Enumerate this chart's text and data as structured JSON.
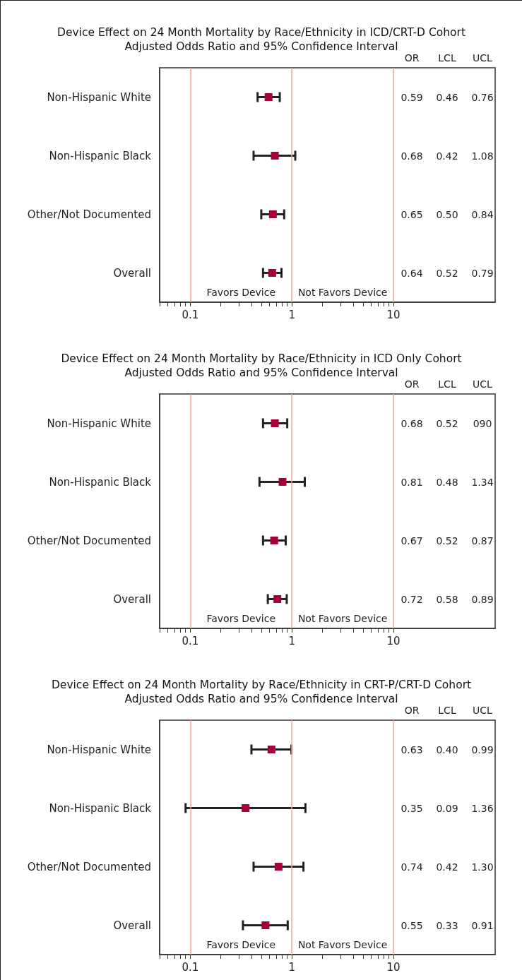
{
  "chart_data": [
    {
      "type": "scatter",
      "orientation": "horizontal",
      "title": "Device Effect on 24 Month Mortality by Race/Ethnicity in ICD/CRT-D Cohort",
      "subtitle": "Adjusted Odds Ratio and 95% Confidence Interval",
      "categories": [
        "Non-Hispanic White",
        "Non-Hispanic Black",
        "Other/Not Documented",
        "Overall"
      ],
      "series": [
        {
          "color": "#a6003a",
          "values": [
            0.59,
            0.68,
            0.65,
            0.64
          ],
          "errors": [
            [
              0.46,
              0.76
            ],
            [
              0.42,
              1.08
            ],
            [
              0.5,
              0.84
            ],
            [
              0.52,
              0.79
            ]
          ]
        }
      ],
      "marker": "square",
      "log": "x",
      "grid": false,
      "xlim": [
        0.05,
        100
      ],
      "xticks": [
        {
          "value": 0.05,
          "label": null
        },
        {
          "value": 0.06,
          "label": null
        },
        {
          "value": 0.07,
          "label": null
        },
        {
          "value": 0.08,
          "label": null
        },
        {
          "value": 0.09,
          "label": null
        },
        0.1,
        {
          "value": 0.2,
          "label": null
        },
        {
          "value": 0.3,
          "label": null
        },
        {
          "value": 0.4,
          "label": null
        },
        {
          "value": 0.5,
          "label": null
        },
        {
          "value": 0.6,
          "label": null
        },
        {
          "value": 0.7,
          "label": null
        },
        {
          "value": 0.8,
          "label": null
        },
        {
          "value": 0.9,
          "label": null
        },
        1,
        {
          "value": 2,
          "label": null
        },
        {
          "value": 3,
          "label": null
        },
        {
          "value": 4,
          "label": null
        },
        {
          "value": 5,
          "label": null
        },
        {
          "value": 6,
          "label": null
        },
        {
          "value": 7,
          "label": null
        },
        {
          "value": 8,
          "label": null
        },
        {
          "value": 9,
          "label": null
        },
        10
      ],
      "ref_lines": [
        {
          "axis": "x",
          "value": 0.1,
          "color": "#f4a590"
        },
        {
          "axis": "x",
          "value": 1,
          "color": "#f4a590"
        },
        {
          "axis": "x",
          "value": 10,
          "color": "#f4a590"
        }
      ],
      "annotations": [
        "Favors Device",
        "Not Favors Device",
        "OR",
        "LCL",
        "UCL",
        "0.59",
        "0.46",
        "0.76",
        "0.68",
        "0.42",
        "1.08",
        "0.65",
        "0.50",
        "0.84",
        "0.64",
        "0.52",
        "0.79"
      ]
    },
    {
      "type": "scatter",
      "orientation": "horizontal",
      "title": "Device Effect on 24 Month Mortality by Race/Ethnicity in ICD Only Cohort",
      "subtitle": "Adjusted Odds Ratio and 95% Confidence Interval",
      "categories": [
        "Non-Hispanic White",
        "Non-Hispanic Black",
        "Other/Not Documented",
        "Overall"
      ],
      "series": [
        {
          "color": "#a6003a",
          "values": [
            0.68,
            0.81,
            0.67,
            0.72
          ],
          "errors": [
            [
              0.52,
              0.9
            ],
            [
              0.48,
              1.34
            ],
            [
              0.52,
              0.87
            ],
            [
              0.58,
              0.89
            ]
          ]
        }
      ],
      "marker": "square",
      "log": "x",
      "grid": false,
      "xlim": [
        0.05,
        100
      ],
      "xticks": [
        {
          "value": 0.05,
          "label": null
        },
        {
          "value": 0.06,
          "label": null
        },
        {
          "value": 0.07,
          "label": null
        },
        {
          "value": 0.08,
          "label": null
        },
        {
          "value": 0.09,
          "label": null
        },
        0.1,
        {
          "value": 0.2,
          "label": null
        },
        {
          "value": 0.3,
          "label": null
        },
        {
          "value": 0.4,
          "label": null
        },
        {
          "value": 0.5,
          "label": null
        },
        {
          "value": 0.6,
          "label": null
        },
        {
          "value": 0.7,
          "label": null
        },
        {
          "value": 0.8,
          "label": null
        },
        {
          "value": 0.9,
          "label": null
        },
        1,
        {
          "value": 2,
          "label": null
        },
        {
          "value": 3,
          "label": null
        },
        {
          "value": 4,
          "label": null
        },
        {
          "value": 5,
          "label": null
        },
        {
          "value": 6,
          "label": null
        },
        {
          "value": 7,
          "label": null
        },
        {
          "value": 8,
          "label": null
        },
        {
          "value": 9,
          "label": null
        },
        10
      ],
      "ref_lines": [
        {
          "axis": "x",
          "value": 0.1,
          "color": "#f4a590"
        },
        {
          "axis": "x",
          "value": 1,
          "color": "#f4a590"
        },
        {
          "axis": "x",
          "value": 10,
          "color": "#f4a590"
        }
      ],
      "annotations": [
        "Favors Device",
        "Not Favors Device",
        "OR",
        "LCL",
        "UCL",
        "0.68",
        "0.52",
        "090",
        "0.81",
        "0.48",
        "1.34",
        "0.67",
        "0.52",
        "0.87",
        "0.72",
        "0.58",
        "0.89"
      ]
    },
    {
      "type": "scatter",
      "orientation": "horizontal",
      "title": "Device Effect on 24 Month Mortality by Race/Ethnicity in CRT-P/CRT-D Cohort",
      "subtitle": "Adjusted Odds Ratio and 95% Confidence Interval",
      "categories": [
        "Non-Hispanic White",
        "Non-Hispanic Black",
        "Other/Not Documented",
        "Overall"
      ],
      "series": [
        {
          "color": "#a6003a",
          "values": [
            0.63,
            0.35,
            0.74,
            0.55
          ],
          "errors": [
            [
              0.4,
              0.99
            ],
            [
              0.09,
              1.36
            ],
            [
              0.42,
              1.3
            ],
            [
              0.33,
              0.91
            ]
          ]
        }
      ],
      "marker": "square",
      "log": "x",
      "grid": false,
      "xlim": [
        0.05,
        100
      ],
      "xticks": [
        {
          "value": 0.05,
          "label": null
        },
        {
          "value": 0.06,
          "label": null
        },
        {
          "value": 0.07,
          "label": null
        },
        {
          "value": 0.08,
          "label": null
        },
        {
          "value": 0.09,
          "label": null
        },
        0.1,
        {
          "value": 0.2,
          "label": null
        },
        {
          "value": 0.3,
          "label": null
        },
        {
          "value": 0.4,
          "label": null
        },
        {
          "value": 0.5,
          "label": null
        },
        {
          "value": 0.6,
          "label": null
        },
        {
          "value": 0.7,
          "label": null
        },
        {
          "value": 0.8,
          "label": null
        },
        {
          "value": 0.9,
          "label": null
        },
        1,
        {
          "value": 2,
          "label": null
        },
        {
          "value": 3,
          "label": null
        },
        {
          "value": 4,
          "label": null
        },
        {
          "value": 5,
          "label": null
        },
        {
          "value": 6,
          "label": null
        },
        {
          "value": 7,
          "label": null
        },
        {
          "value": 8,
          "label": null
        },
        {
          "value": 9,
          "label": null
        },
        10
      ],
      "ref_lines": [
        {
          "axis": "x",
          "value": 0.1,
          "color": "#f4a590"
        },
        {
          "axis": "x",
          "value": 1,
          "color": "#f4a590"
        },
        {
          "axis": "x",
          "value": 10,
          "color": "#f4a590"
        }
      ],
      "annotations": [
        "Favors Device",
        "Not Favors Device",
        "OR",
        "LCL",
        "UCL",
        "0.63",
        "0.40",
        "0.99",
        "0.35",
        "0.09",
        "1.36",
        "0.74",
        "0.42",
        "1.30",
        "0.55",
        "0.33",
        "0.91"
      ]
    }
  ]
}
